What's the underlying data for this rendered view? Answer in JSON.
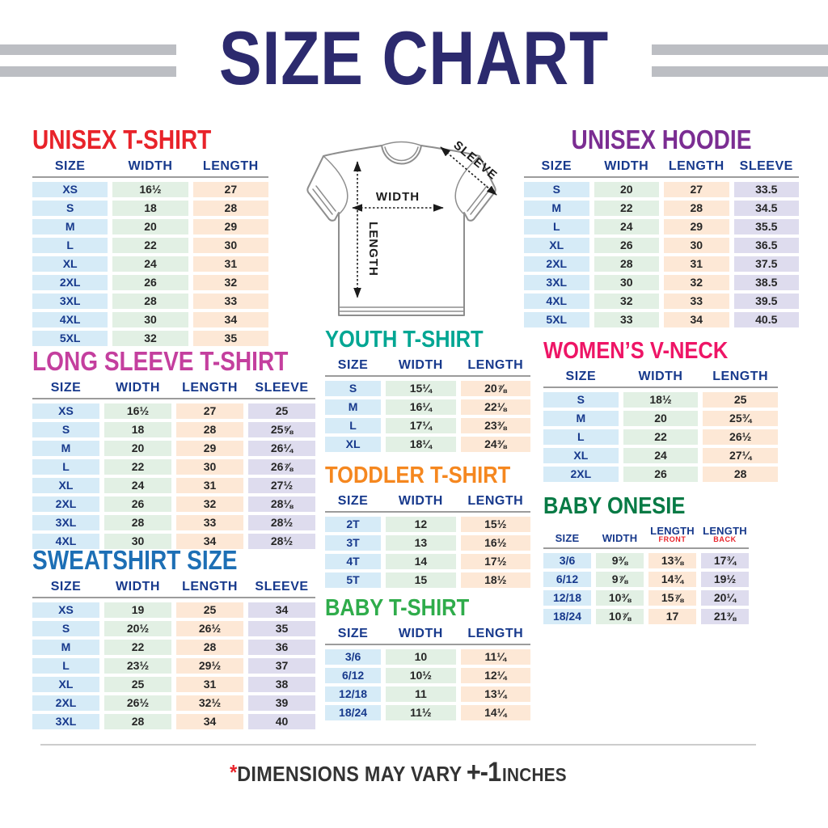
{
  "header": {
    "title": "SIZE CHART"
  },
  "palette": {
    "title_navy": "#2c2a6e",
    "header_navy": "#17398c",
    "value_text": "#262626",
    "size_cell": "#d6ebf7",
    "width_cell": "#e2f0e4",
    "length_cell": "#fde8d6",
    "sleeve_cell": "#dedcee",
    "stripe_gray": "#bcbec3",
    "rule_gray": "#9c9c9c",
    "divider_gray": "#cccccc",
    "footer_text": "#333333",
    "accent_red": "#e8232a",
    "diagram_line": "#8e8e8e",
    "arrow_black": "#1b1b1b"
  },
  "diagram": {
    "width_label": "WIDTH",
    "length_label": "LENGTH",
    "sleeve_label": "SLEEVE"
  },
  "tables": {
    "unisex_tshirt": {
      "title": "UNISEX T-SHIRT",
      "color": "#e8232a",
      "headers": [
        "SIZE",
        "WIDTH",
        "LENGTH"
      ],
      "rows": [
        [
          "XS",
          "16½",
          "27"
        ],
        [
          "S",
          "18",
          "28"
        ],
        [
          "M",
          "20",
          "29"
        ],
        [
          "L",
          "22",
          "30"
        ],
        [
          "XL",
          "24",
          "31"
        ],
        [
          "2XL",
          "26",
          "32"
        ],
        [
          "3XL",
          "28",
          "33"
        ],
        [
          "4XL",
          "30",
          "34"
        ],
        [
          "5XL",
          "32",
          "35"
        ]
      ]
    },
    "unisex_hoodie": {
      "title": "UNISEX HOODIE",
      "color": "#7b2d92",
      "headers": [
        "SIZE",
        "WIDTH",
        "LENGTH",
        "SLEEVE"
      ],
      "rows": [
        [
          "S",
          "20",
          "27",
          "33.5"
        ],
        [
          "M",
          "22",
          "28",
          "34.5"
        ],
        [
          "L",
          "24",
          "29",
          "35.5"
        ],
        [
          "XL",
          "26",
          "30",
          "36.5"
        ],
        [
          "2XL",
          "28",
          "31",
          "37.5"
        ],
        [
          "3XL",
          "30",
          "32",
          "38.5"
        ],
        [
          "4XL",
          "32",
          "33",
          "39.5"
        ],
        [
          "5XL",
          "33",
          "34",
          "40.5"
        ]
      ]
    },
    "long_sleeve": {
      "title": "LONG SLEEVE T-SHIRT",
      "color": "#c43f9e",
      "headers": [
        "SIZE",
        "WIDTH",
        "LENGTH",
        "SLEEVE"
      ],
      "rows": [
        [
          "XS",
          "16½",
          "27",
          "25"
        ],
        [
          "S",
          "18",
          "28",
          "25⅝"
        ],
        [
          "M",
          "20",
          "29",
          "26¼"
        ],
        [
          "L",
          "22",
          "30",
          "26⅞"
        ],
        [
          "XL",
          "24",
          "31",
          "27½"
        ],
        [
          "2XL",
          "26",
          "32",
          "28⅛"
        ],
        [
          "3XL",
          "28",
          "33",
          "28½"
        ],
        [
          "4XL",
          "30",
          "34",
          "28½"
        ]
      ]
    },
    "sweatshirt": {
      "title": "SWEATSHIRT SIZE",
      "color": "#1d6fb5",
      "headers": [
        "SIZE",
        "WIDTH",
        "LENGTH",
        "SLEEVE"
      ],
      "rows": [
        [
          "XS",
          "19",
          "25",
          "34"
        ],
        [
          "S",
          "20½",
          "26½",
          "35"
        ],
        [
          "M",
          "22",
          "28",
          "36"
        ],
        [
          "L",
          "23½",
          "29½",
          "37"
        ],
        [
          "XL",
          "25",
          "31",
          "38"
        ],
        [
          "2XL",
          "26½",
          "32½",
          "39"
        ],
        [
          "3XL",
          "28",
          "34",
          "40"
        ]
      ]
    },
    "youth": {
      "title": "YOUTH T-SHIRT",
      "color": "#00a693",
      "headers": [
        "SIZE",
        "WIDTH",
        "LENGTH"
      ],
      "rows": [
        [
          "S",
          "15¼",
          "20⅞"
        ],
        [
          "M",
          "16¼",
          "22⅛"
        ],
        [
          "L",
          "17¼",
          "23⅜"
        ],
        [
          "XL",
          "18¼",
          "24⅜"
        ]
      ]
    },
    "toddler": {
      "title": "TODDLER T-SHIRT",
      "color": "#f5871f",
      "headers": [
        "SIZE",
        "WIDTH",
        "LENGTH"
      ],
      "rows": [
        [
          "2T",
          "12",
          "15½"
        ],
        [
          "3T",
          "13",
          "16½"
        ],
        [
          "4T",
          "14",
          "17½"
        ],
        [
          "5T",
          "15",
          "18½"
        ]
      ]
    },
    "baby_tshirt": {
      "title": "BABY T-SHIRT",
      "color": "#2fac4b",
      "headers": [
        "SIZE",
        "WIDTH",
        "LENGTH"
      ],
      "rows": [
        [
          "3/6",
          "10",
          "11¼"
        ],
        [
          "6/12",
          "10½",
          "12¼"
        ],
        [
          "12/18",
          "11",
          "13¼"
        ],
        [
          "18/24",
          "11½",
          "14¼"
        ]
      ]
    },
    "womens_vneck": {
      "title": "WOMEN’S V-NECK",
      "color": "#ee1566",
      "headers": [
        "SIZE",
        "WIDTH",
        "LENGTH"
      ],
      "rows": [
        [
          "S",
          "18½",
          "25"
        ],
        [
          "M",
          "20",
          "25¾"
        ],
        [
          "L",
          "22",
          "26½"
        ],
        [
          "XL",
          "24",
          "27¼"
        ],
        [
          "2XL",
          "26",
          "28"
        ]
      ]
    },
    "baby_onesie": {
      "title": "BABY ONESIE",
      "color": "#077a45",
      "headers": [
        "SIZE",
        "WIDTH",
        {
          "label": "LENGTH",
          "sub": "FRONT"
        },
        {
          "label": "LENGTH",
          "sub": "BACK"
        }
      ],
      "rows": [
        [
          "3/6",
          "9⅜",
          "13⅜",
          "17¾"
        ],
        [
          "6/12",
          "9⅞",
          "14¾",
          "19½"
        ],
        [
          "12/18",
          "10⅜",
          "15⅞",
          "20¼"
        ],
        [
          "18/24",
          "10⅞",
          "17",
          "21⅜"
        ]
      ]
    }
  },
  "footer": {
    "asterisk": "*",
    "text": "DIMENSIONS MAY VARY",
    "tolerance": "+-1",
    "unit": "INCHES"
  }
}
